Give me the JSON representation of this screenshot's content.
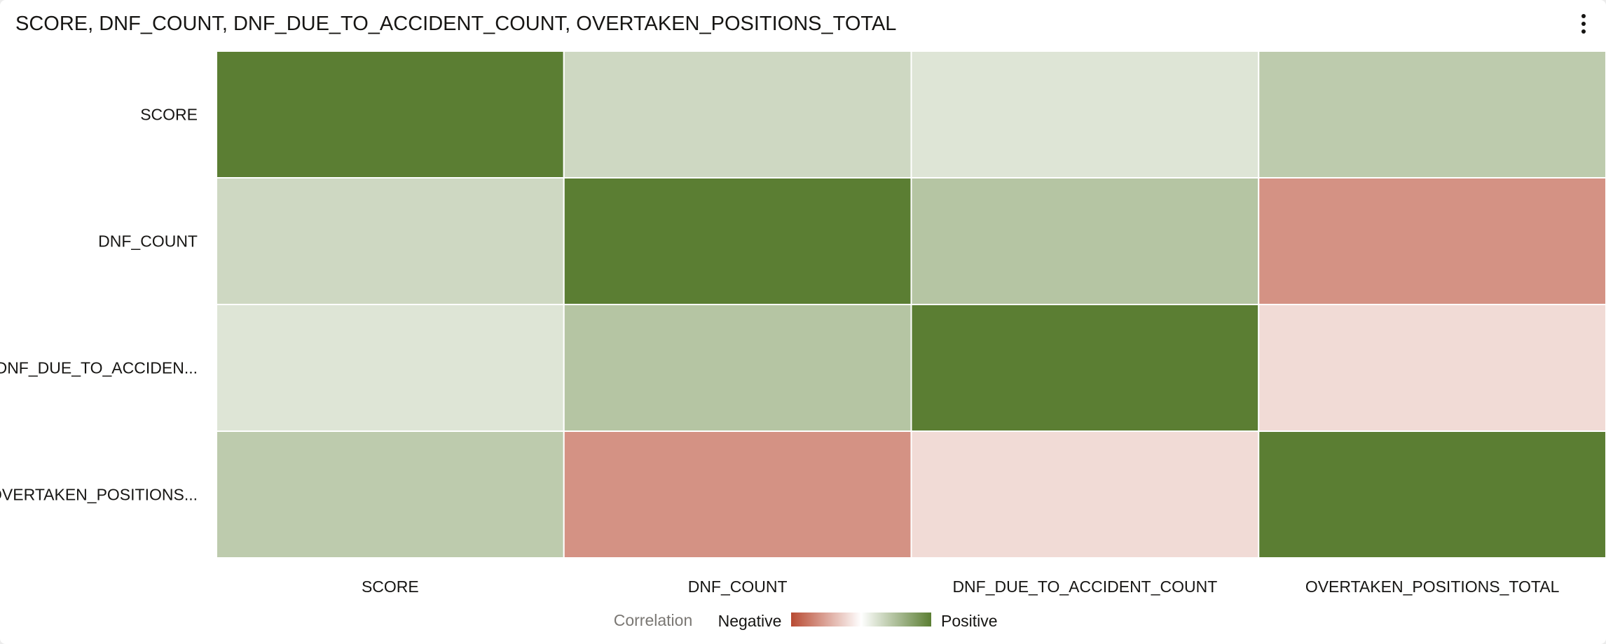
{
  "header": {
    "title": "SCORE, DNF_COUNT, DNF_DUE_TO_ACCIDENT_COUNT, OVERTAKEN_POSITIONS_TOTAL",
    "menu_icon": "more-vertical-icon"
  },
  "chart_data": {
    "type": "heatmap",
    "title": "SCORE, DNF_COUNT, DNF_DUE_TO_ACCIDENT_COUNT, OVERTAKEN_POSITIONS_TOTAL",
    "x_categories": [
      "SCORE",
      "DNF_COUNT",
      "DNF_DUE_TO_ACCIDENT_COUNT",
      "OVERTAKEN_POSITIONS_TOTAL"
    ],
    "y_categories": [
      "SCORE",
      "DNF_COUNT",
      "DNF_DUE_TO_ACCIDENT_COUNT",
      "OVERTAKEN_POSITIONS_TOTAL"
    ],
    "y_tick_labels": [
      "SCORE",
      "DNF_COUNT",
      "DNF_DUE_TO_ACCIDENT_COUNT",
      "OVERTAKEN_POSITIONS_TOTAL"
    ],
    "y_tick_display": [
      "SCORE",
      "DNF_COUNT",
      "DNF_DUE_TO_ACCIDEN...",
      "OVERTAKEN_POSITIONS..."
    ],
    "values": [
      [
        1.0,
        0.3,
        0.2,
        0.4
      ],
      [
        0.3,
        1.0,
        0.45,
        -0.6
      ],
      [
        0.2,
        0.45,
        1.0,
        -0.2
      ],
      [
        0.4,
        -0.6,
        -0.2,
        1.0
      ]
    ],
    "value_range": [
      -1,
      1
    ],
    "legend": {
      "title": "Correlation",
      "negative_label": "Negative",
      "positive_label": "Positive",
      "placement": "bottom-center"
    },
    "colors": {
      "negative": "#b84a32",
      "neutral": "#ffffff",
      "positive": "#5b7e33",
      "cell_border": "#ffffff"
    }
  }
}
